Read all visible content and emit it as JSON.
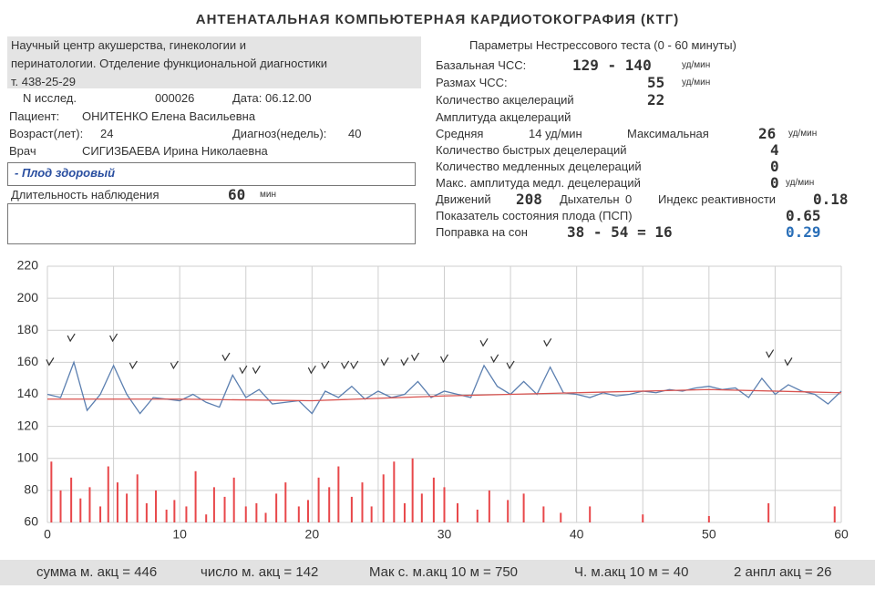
{
  "title": "АНТЕНАТАЛЬНАЯ КОМПЬЮТЕРНАЯ КАРДИОТОКОГРАФИЯ (КТГ)",
  "institution": [
    "Научный центр акушерства, гинекологии и",
    "перинатологии. Отделение функциональной диагностики",
    "т. 438-25-29"
  ],
  "record": [
    "N исслед.",
    "000026",
    "Дата: 06.12.00",
    "Пациент:",
    "ОНИТЕНКО Елена Васильевна",
    "Возраст(лет):",
    "24",
    "Диагноз(недель):",
    "40",
    "Врач",
    "СИГИЗБАЕВА Ирина Николаевна",
    "- Плод здоровый",
    "Длительность наблюдения",
    "60",
    "мин"
  ],
  "parameters": {
    "title": "Параметры Нестрессового теста (0 - 60 минуты)",
    "items": [
      "Базальная ЧСС:",
      "129 - 140",
      "уд/мин",
      "Размах ЧСС:",
      "55",
      "уд/мин",
      "Количество акцелераций",
      "22",
      "Амплитуда акцелераций",
      "Средняя",
      "14 уд/мин",
      "Максимальная",
      "26",
      "уд/мин",
      "Количество быстрых децелераций",
      "4",
      "Количество медленных децелераций",
      "0",
      "Макс. амплитуда медл. децелераций",
      "0",
      "уд/мин",
      "Движений",
      "208",
      "Дыхательн",
      "0",
      "Индекс реактивности",
      "0.18",
      "Показатель состояния плода (ПСП)",
      "0.65",
      "Поправка на сон",
      "38 - 54 = 16",
      "0.29"
    ]
  },
  "footer": [
    "сумма м. акц = 446",
    "число м. акц = 142",
    "Мак с. м.акц 10 м = 750",
    "Ч. м.акц 10 м = 40",
    "2 анпл акц = 26"
  ],
  "chart_data": {
    "type": "line",
    "xlim": [
      0,
      60
    ],
    "xticks": [
      0,
      10,
      20,
      30,
      40,
      50,
      60
    ],
    "xgrid_minor": [
      5,
      15,
      25,
      35,
      45,
      55
    ],
    "ylim": [
      60,
      220
    ],
    "yticks": [
      60,
      80,
      100,
      120,
      140,
      160,
      180,
      200,
      220
    ],
    "grid": true,
    "series": [
      {
        "color": "#5b7fb0",
        "x": [
          0,
          1,
          2,
          3,
          4,
          5,
          6,
          7,
          8,
          9,
          10,
          11,
          12,
          13,
          14,
          15,
          16,
          17,
          18,
          19,
          20,
          21,
          22,
          23,
          24,
          25,
          26,
          27,
          28,
          29,
          30,
          31,
          32,
          33,
          34,
          35,
          36,
          37,
          38,
          39,
          40,
          41,
          42,
          43,
          44,
          45,
          46,
          47,
          48,
          49,
          50,
          51,
          52,
          53,
          54,
          55,
          56,
          57,
          58,
          59,
          60
        ],
        "values": [
          140,
          138,
          160,
          130,
          140,
          158,
          140,
          128,
          138,
          137,
          136,
          140,
          135,
          132,
          152,
          138,
          143,
          134,
          135,
          136,
          128,
          142,
          138,
          145,
          137,
          142,
          138,
          140,
          148,
          138,
          142,
          140,
          138,
          158,
          145,
          140,
          148,
          140,
          157,
          141,
          140,
          138,
          141,
          139,
          140,
          142,
          141,
          143,
          142,
          144,
          145,
          143,
          144,
          138,
          150,
          140,
          146,
          142,
          140,
          134,
          142
        ]
      },
      {
        "color": "#d9534f",
        "x": [
          0,
          10,
          20,
          30,
          40,
          50,
          60
        ],
        "values": [
          137,
          137,
          136,
          139,
          141,
          143,
          141
        ]
      }
    ],
    "bars": {
      "color": "#e8474a",
      "x": [
        0.3,
        1,
        1.8,
        2.5,
        3.2,
        4,
        4.6,
        5.3,
        6,
        6.8,
        7.5,
        8.2,
        9,
        9.6,
        10.5,
        11.2,
        12,
        12.6,
        13.4,
        14.1,
        15,
        15.8,
        16.5,
        17.3,
        18,
        19,
        19.7,
        20.5,
        21.3,
        22,
        23,
        23.8,
        24.5,
        25.4,
        26.2,
        27,
        27.6,
        28.3,
        29.2,
        30,
        31,
        32.5,
        33.4,
        34.8,
        36,
        37.5,
        38.8,
        41,
        45,
        50,
        54.5,
        59.5
      ],
      "values": [
        98,
        80,
        88,
        75,
        82,
        70,
        95,
        85,
        78,
        90,
        72,
        80,
        68,
        74,
        70,
        92,
        65,
        82,
        76,
        88,
        70,
        72,
        66,
        78,
        85,
        70,
        74,
        88,
        82,
        95,
        76,
        85,
        70,
        90,
        98,
        72,
        100,
        78,
        88,
        82,
        72,
        68,
        80,
        74,
        78,
        70,
        66,
        70,
        65,
        64,
        72,
        70
      ]
    },
    "accelerations": {
      "color": "#333333",
      "x": [
        0.2,
        1.8,
        5,
        6.5,
        9.6,
        13.5,
        14.8,
        15.8,
        20,
        21,
        22.5,
        23.2,
        25.5,
        27,
        27.8,
        30,
        33,
        33.8,
        35,
        37.8,
        54.6,
        56
      ],
      "y": [
        160,
        175,
        175,
        158,
        158,
        163,
        155,
        155,
        155,
        158,
        158,
        158,
        160,
        160,
        163,
        162,
        172,
        162,
        158,
        172,
        165,
        160
      ]
    }
  }
}
